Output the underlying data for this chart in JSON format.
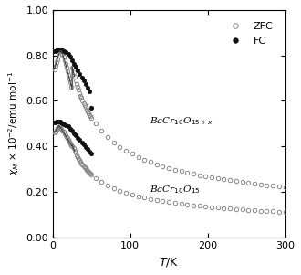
{
  "title": "",
  "xlabel": "T/K",
  "xlim": [
    0,
    300
  ],
  "ylim": [
    0.0,
    1.0
  ],
  "xticks": [
    0,
    100,
    200,
    300
  ],
  "yticks": [
    0.0,
    0.2,
    0.4,
    0.6,
    0.8,
    1.0
  ],
  "background": "#ffffff",
  "open_circle_color": "#888888",
  "filled_dot_color": "#111111"
}
